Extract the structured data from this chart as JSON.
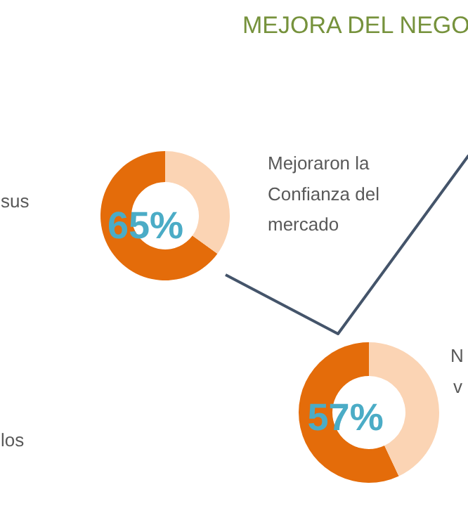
{
  "chart_data": [
    {
      "type": "donut",
      "title": "MEJORA DEL NEGO",
      "categories": [
        null,
        null
      ],
      "values": [
        65,
        35
      ],
      "colors": [
        "#e46c0a",
        "#fbd4b4"
      ],
      "value_labels": [
        "65%",
        null
      ],
      "annotations": [
        "Mejoraron la Confianza del mercado",
        "sus",
        "los"
      ]
    },
    {
      "type": "donut",
      "categories": [
        null,
        null
      ],
      "values": [
        57,
        43
      ],
      "colors": [
        "#e46c0a",
        "#fbd4b4"
      ],
      "value_labels": [
        "57%",
        null
      ],
      "annotations": [
        "N",
        "v"
      ]
    }
  ]
}
